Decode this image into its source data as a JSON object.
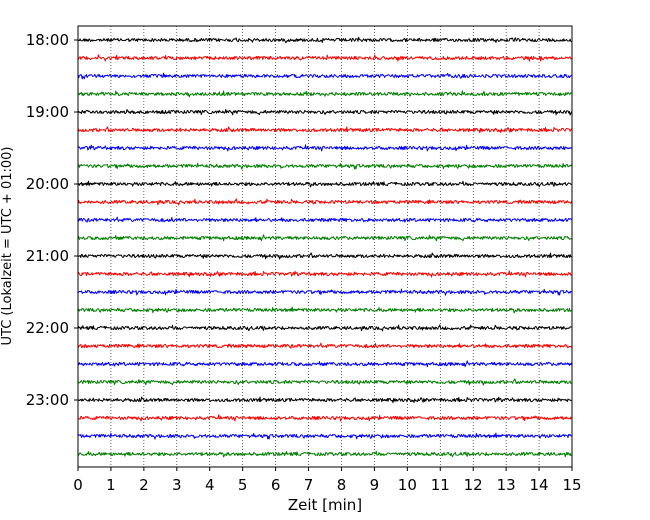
{
  "chart_data": {
    "type": "line",
    "title": "",
    "xlabel": "Zeit  [min]",
    "ylabel": "UTC (Lokalzeit = UTC + 01:00)",
    "xlim": [
      0,
      15
    ],
    "x_ticks": [
      "0",
      "1",
      "2",
      "3",
      "4",
      "5",
      "6",
      "7",
      "8",
      "9",
      "10",
      "11",
      "12",
      "13",
      "14",
      "15"
    ],
    "y_tick_labels": [
      "18:00",
      "19:00",
      "20:00",
      "21:00",
      "22:00",
      "23:00"
    ],
    "trace_interval_minutes": 15,
    "traces_start": "18:00",
    "traces_end": "23:45",
    "trace_count": 24,
    "colors": [
      "#000000",
      "#ff0000",
      "#0000ff",
      "#008000"
    ],
    "grid_vertical": "dotted",
    "grid_horizontal": false,
    "legend": "none"
  }
}
